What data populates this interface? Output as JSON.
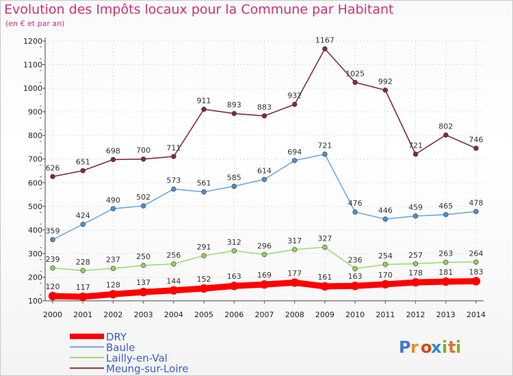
{
  "title": "Evolution des Impôts locaux pour la Commune par Habitant",
  "subtitle": "(en € et par an)",
  "logo_text": "Proxiti",
  "colors": {
    "title": "#d0306e",
    "legend_text": "#3a5ec8"
  },
  "chart_data": {
    "type": "line",
    "ylim": [
      100,
      1200
    ],
    "yticks": [
      100,
      200,
      300,
      400,
      500,
      600,
      700,
      800,
      900,
      1000,
      1100,
      1200
    ],
    "x": [
      "2000",
      "2001",
      "2002",
      "2003",
      "2004",
      "2005",
      "2006",
      "2007",
      "2008",
      "2009",
      "2010",
      "2011",
      "2012",
      "2013",
      "2014"
    ],
    "grid": true,
    "legend_position": "bottom-left",
    "series": [
      {
        "name": "DRY",
        "color": "#ff0000",
        "marker": "#ff0000",
        "thick": true,
        "values": [
          120,
          117,
          128,
          137,
          144,
          152,
          163,
          169,
          177,
          161,
          163,
          170,
          178,
          181,
          183
        ]
      },
      {
        "name": "Baule",
        "color": "#6fa8d6",
        "marker": "#4a90d0",
        "thick": false,
        "values": [
          359,
          424,
          490,
          502,
          573,
          561,
          585,
          614,
          694,
          721,
          476,
          446,
          459,
          465,
          478
        ]
      },
      {
        "name": "Lailly-en-Val",
        "color": "#a0d878",
        "marker": "#90d060",
        "thick": false,
        "values": [
          239,
          228,
          237,
          250,
          256,
          291,
          312,
          296,
          317,
          327,
          236,
          254,
          257,
          263,
          264
        ]
      },
      {
        "name": "Meung-sur-Loire",
        "color": "#7a3038",
        "marker": "#8a2830",
        "thick": false,
        "values": [
          626,
          651,
          698,
          700,
          711,
          911,
          893,
          883,
          932,
          1167,
          1025,
          992,
          721,
          802,
          746
        ]
      }
    ]
  }
}
